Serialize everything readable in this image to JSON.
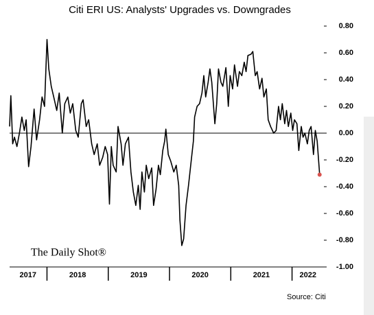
{
  "chart_data": {
    "type": "line",
    "title": "Citi ERI US: Analysts' Upgrades vs. Downgrades",
    "watermark": "The Daily Shot®",
    "source": "Source: Citi",
    "xlim": [
      2017.39,
      2022.52
    ],
    "ylim": [
      -1,
      0.8
    ],
    "yticks": [
      {
        "value": 0.8,
        "label": "0.80"
      },
      {
        "value": 0.6,
        "label": "0.60"
      },
      {
        "value": 0.4,
        "label": "0.40"
      },
      {
        "value": 0.2,
        "label": "0.20"
      },
      {
        "value": 0,
        "label": "0.00"
      },
      {
        "value": -0.2,
        "label": "-0.20"
      },
      {
        "value": -0.4,
        "label": "-0.40"
      },
      {
        "value": -0.6,
        "label": "-0.60"
      },
      {
        "value": -0.8,
        "label": "-0.80"
      },
      {
        "value": -1,
        "label": "-1.00"
      }
    ],
    "xticks": [
      {
        "value": 2017.69,
        "label": "2017"
      },
      {
        "value": 2018.5,
        "label": "2018"
      },
      {
        "value": 2019.5,
        "label": "2019"
      },
      {
        "value": 2020.5,
        "label": "2020"
      },
      {
        "value": 2021.5,
        "label": "2021"
      },
      {
        "value": 2022.26,
        "label": "2022"
      }
    ],
    "year_boundaries": [
      2018,
      2019,
      2020,
      2021,
      2022
    ],
    "zero_line": true,
    "grid": false,
    "last_point_color": "#d9534f",
    "series": [
      {
        "color": "#000000",
        "x": [
          2017.39,
          2017.41,
          2017.44,
          2017.47,
          2017.51,
          2017.55,
          2017.59,
          2017.63,
          2017.66,
          2017.7,
          2017.74,
          2017.79,
          2017.83,
          2017.88,
          2017.92,
          2017.96,
          2018.0,
          2018.03,
          2018.07,
          2018.11,
          2018.16,
          2018.2,
          2018.25,
          2018.29,
          2018.34,
          2018.38,
          2018.42,
          2018.47,
          2018.51,
          2018.56,
          2018.59,
          2018.64,
          2018.68,
          2018.73,
          2018.77,
          2018.82,
          2018.86,
          2018.91,
          2018.95,
          2018.99,
          2019.02,
          2019.05,
          2019.08,
          2019.13,
          2019.16,
          2019.21,
          2019.24,
          2019.28,
          2019.33,
          2019.37,
          2019.41,
          2019.45,
          2019.49,
          2019.52,
          2019.55,
          2019.59,
          2019.62,
          2019.66,
          2019.71,
          2019.74,
          2019.78,
          2019.82,
          2019.85,
          2019.89,
          2019.92,
          2019.94,
          2019.98,
          2020.02,
          2020.07,
          2020.11,
          2020.15,
          2020.17,
          2020.2,
          2020.23,
          2020.27,
          2020.31,
          2020.36,
          2020.39,
          2020.41,
          2020.45,
          2020.49,
          2020.53,
          2020.56,
          2020.59,
          2020.63,
          2020.66,
          2020.69,
          2020.74,
          2020.77,
          2020.8,
          2020.84,
          2020.87,
          2020.92,
          2020.96,
          2020.99,
          2021.03,
          2021.06,
          2021.11,
          2021.14,
          2021.18,
          2021.22,
          2021.25,
          2021.28,
          2021.33,
          2021.36,
          2021.4,
          2021.43,
          2021.47,
          2021.51,
          2021.54,
          2021.58,
          2021.61,
          2021.65,
          2021.7,
          2021.74,
          2021.78,
          2021.81,
          2021.84,
          2021.88,
          2021.91,
          2021.94,
          2021.98,
          2022.01,
          2022.04,
          2022.08,
          2022.11,
          2022.15,
          2022.18,
          2022.21,
          2022.25,
          2022.28,
          2022.31,
          2022.35,
          2022.38,
          2022.41,
          2022.45
        ],
        "values": [
          0.05,
          0.28,
          -0.08,
          -0.03,
          -0.1,
          0.0,
          0.12,
          0.02,
          0.1,
          -0.25,
          -0.1,
          0.18,
          -0.05,
          0.1,
          0.27,
          0.2,
          0.7,
          0.48,
          0.35,
          0.27,
          0.17,
          0.3,
          0.0,
          0.22,
          0.27,
          0.15,
          0.22,
          0.02,
          -0.03,
          0.22,
          0.25,
          0.05,
          0.1,
          -0.08,
          -0.16,
          -0.08,
          -0.24,
          -0.18,
          -0.1,
          -0.16,
          -0.53,
          -0.1,
          -0.24,
          -0.29,
          0.05,
          -0.08,
          -0.24,
          -0.08,
          -0.03,
          -0.29,
          -0.44,
          -0.54,
          -0.39,
          -0.57,
          -0.29,
          -0.44,
          -0.24,
          -0.34,
          -0.26,
          -0.54,
          -0.42,
          -0.24,
          -0.31,
          -0.13,
          -0.06,
          0.03,
          -0.16,
          -0.21,
          -0.29,
          -0.24,
          -0.39,
          -0.65,
          -0.84,
          -0.79,
          -0.54,
          -0.39,
          -0.18,
          -0.06,
          0.12,
          0.2,
          0.22,
          0.3,
          0.43,
          0.27,
          0.38,
          0.48,
          0.38,
          0.07,
          0.22,
          0.48,
          0.38,
          0.35,
          0.49,
          0.2,
          0.43,
          0.33,
          0.51,
          0.35,
          0.46,
          0.43,
          0.53,
          0.46,
          0.58,
          0.59,
          0.61,
          0.43,
          0.46,
          0.33,
          0.41,
          0.27,
          0.33,
          0.1,
          0.05,
          0.0,
          0.02,
          0.2,
          0.1,
          0.22,
          0.07,
          0.17,
          0.05,
          0.15,
          0.02,
          0.1,
          0.07,
          -0.13,
          0.05,
          -0.03,
          0.0,
          -0.08,
          0.02,
          0.05,
          -0.16,
          0.02,
          -0.06,
          -0.31
        ]
      }
    ]
  }
}
